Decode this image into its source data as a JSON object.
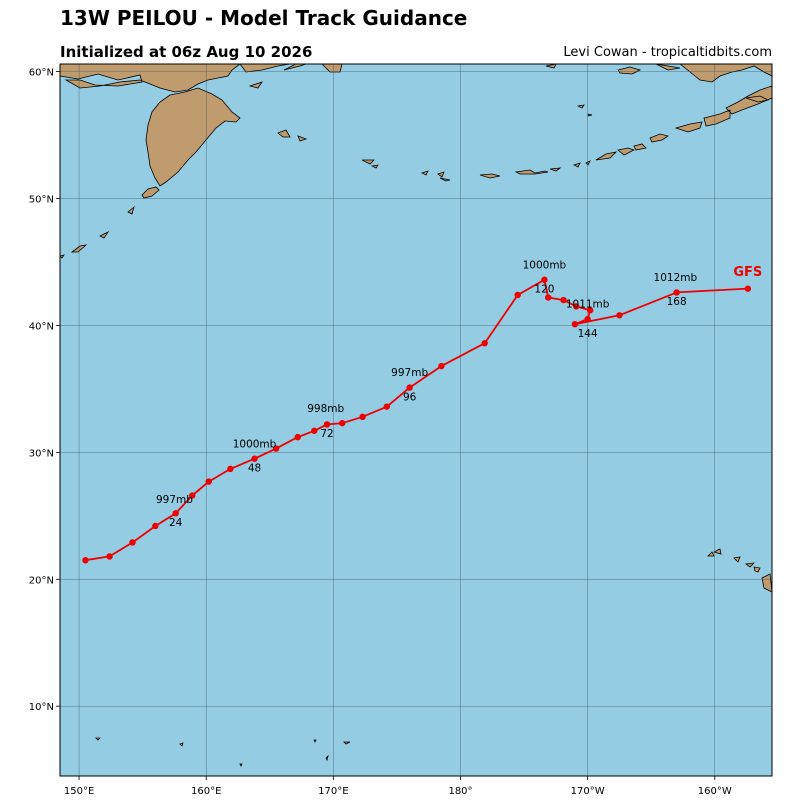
{
  "header": {
    "title": "13W PEILOU - Model Track Guidance",
    "subtitle": "Initialized at 06z Aug 10 2026",
    "credit": "Levi Cowan - tropicaltidbits.com"
  },
  "colors": {
    "ocean": "#94cde3",
    "land": "#c09b6d",
    "track": "#ee0000",
    "grid": "#3d5a66"
  },
  "chart_data": {
    "type": "map-track",
    "projection": "equirectangular",
    "lon_range": [
      148.5,
      204.5
    ],
    "lat_range": [
      4.5,
      60.6
    ],
    "grid": true,
    "x_ticks": [
      {
        "lon": 150,
        "label": "150°E"
      },
      {
        "lon": 160,
        "label": "160°E"
      },
      {
        "lon": 170,
        "label": "170°E"
      },
      {
        "lon": 180,
        "label": "180°"
      },
      {
        "lon": 190,
        "label": "170°W"
      },
      {
        "lon": 200,
        "label": "160°W"
      }
    ],
    "y_ticks": [
      {
        "lat": 10,
        "label": "10°N"
      },
      {
        "lat": 20,
        "label": "20°N"
      },
      {
        "lat": 30,
        "label": "30°N"
      },
      {
        "lat": 40,
        "label": "40°N"
      },
      {
        "lat": 50,
        "label": "50°N"
      },
      {
        "lat": 60,
        "label": "60°N"
      }
    ],
    "series": [
      {
        "name": "GFS",
        "color": "#ee0000",
        "points": [
          {
            "lon": 150.5,
            "lat": 21.5
          },
          {
            "lon": 152.4,
            "lat": 21.8
          },
          {
            "lon": 154.2,
            "lat": 22.9
          },
          {
            "lon": 156.0,
            "lat": 24.2
          },
          {
            "lon": 157.6,
            "lat": 25.2
          },
          {
            "lon": 158.9,
            "lat": 26.6
          },
          {
            "lon": 160.2,
            "lat": 27.7
          },
          {
            "lon": 161.9,
            "lat": 28.7
          },
          {
            "lon": 163.8,
            "lat": 29.5
          },
          {
            "lon": 165.5,
            "lat": 30.3
          },
          {
            "lon": 167.2,
            "lat": 31.2
          },
          {
            "lon": 168.5,
            "lat": 31.7
          },
          {
            "lon": 169.5,
            "lat": 32.2
          },
          {
            "lon": 170.7,
            "lat": 32.3
          },
          {
            "lon": 172.3,
            "lat": 32.8
          },
          {
            "lon": 174.2,
            "lat": 33.6
          },
          {
            "lon": 176.0,
            "lat": 35.1
          },
          {
            "lon": 178.5,
            "lat": 36.8
          },
          {
            "lon": 181.9,
            "lat": 38.6
          },
          {
            "lon": 184.5,
            "lat": 42.4
          },
          {
            "lon": 186.6,
            "lat": 43.6
          },
          {
            "lon": 186.9,
            "lat": 42.2
          },
          {
            "lon": 188.1,
            "lat": 42.0
          },
          {
            "lon": 189.1,
            "lat": 41.5
          },
          {
            "lon": 190.2,
            "lat": 41.2
          },
          {
            "lon": 190.0,
            "lat": 40.5
          },
          {
            "lon": 189.0,
            "lat": 40.1
          },
          {
            "lon": 192.5,
            "lat": 40.8
          },
          {
            "lon": 197.0,
            "lat": 42.6
          },
          {
            "lon": 202.6,
            "lat": 42.9
          }
        ]
      }
    ],
    "pressure_labels": [
      {
        "text": "997mb",
        "lon": 157.5,
        "lat": 26.0
      },
      {
        "text": "1000mb",
        "lon": 163.8,
        "lat": 30.4
      },
      {
        "text": "998mb",
        "lon": 169.4,
        "lat": 33.2
      },
      {
        "text": "997mb",
        "lon": 176.0,
        "lat": 36.0
      },
      {
        "text": "1000mb",
        "lon": 186.6,
        "lat": 44.5
      },
      {
        "text": "1011mb",
        "lon": 190.0,
        "lat": 41.4
      },
      {
        "text": "1012mb",
        "lon": 196.9,
        "lat": 43.5
      }
    ],
    "hour_labels": [
      {
        "text": "24",
        "lon": 157.6,
        "lat": 24.2
      },
      {
        "text": "48",
        "lon": 163.8,
        "lat": 28.5
      },
      {
        "text": "72",
        "lon": 169.5,
        "lat": 31.2
      },
      {
        "text": "96",
        "lon": 176.0,
        "lat": 34.1
      },
      {
        "text": "120",
        "lon": 186.6,
        "lat": 42.6
      },
      {
        "text": "144",
        "lon": 190.0,
        "lat": 39.1
      },
      {
        "text": "168",
        "lon": 197.0,
        "lat": 41.6
      }
    ],
    "model_label": {
      "text": "GFS",
      "lon": 202.6,
      "lat": 43.9
    }
  }
}
